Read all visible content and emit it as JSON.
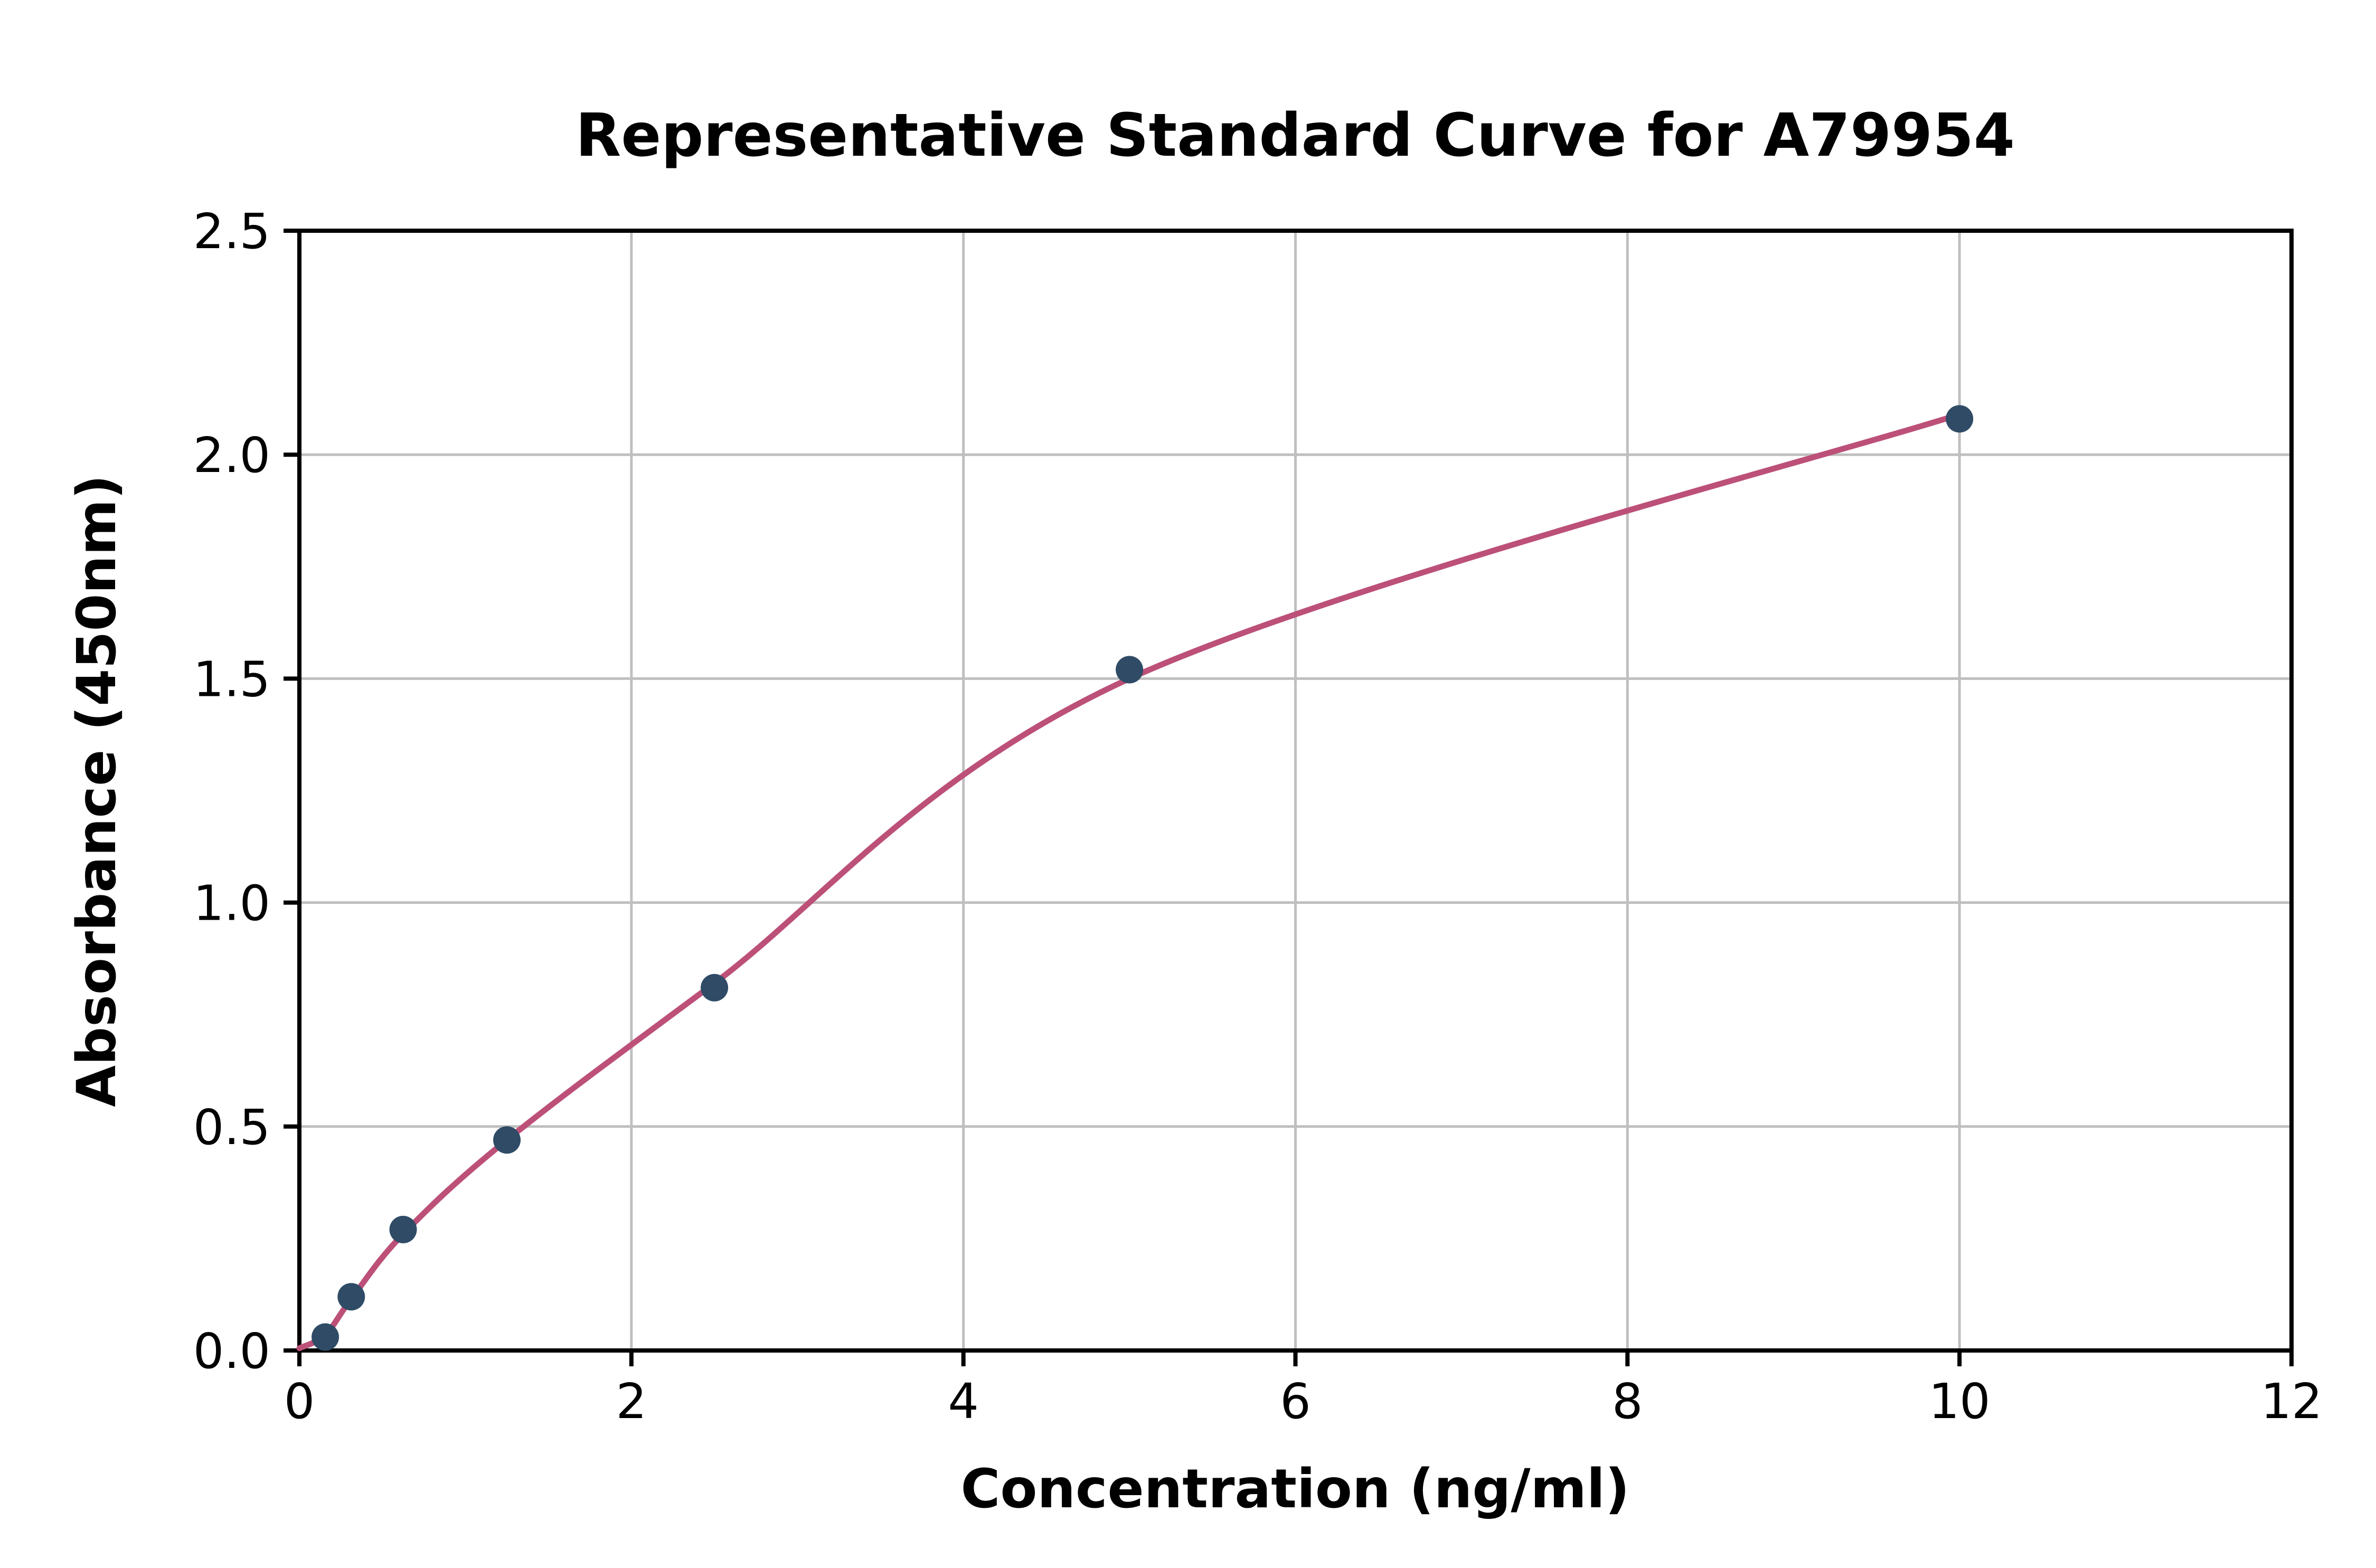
{
  "figure": {
    "background_color": "#ffffff"
  },
  "chart_data": {
    "type": "scatter",
    "title": "Representative Standard Curve for A79954",
    "xlabel": "Concentration (ng/ml)",
    "ylabel": "Absorbance (450nm)",
    "xlim": [
      0,
      12
    ],
    "ylim": [
      0,
      2.5
    ],
    "x_tick_values": [
      0,
      2,
      4,
      6,
      8,
      10,
      12
    ],
    "x_tick_labels": [
      "0",
      "2",
      "4",
      "6",
      "8",
      "10",
      "12"
    ],
    "y_tick_values": [
      0.0,
      0.5,
      1.0,
      1.5,
      2.0,
      2.5
    ],
    "y_tick_labels": [
      "0.0",
      "0.5",
      "1.0",
      "1.5",
      "2.0",
      "2.5"
    ],
    "grid": true,
    "legend": "none",
    "colors": {
      "point": "#2f4b66",
      "curve": "#bc5078",
      "grid": "#bfbfbf",
      "axis": "#000000",
      "text": "#000000"
    },
    "series": [
      {
        "name": "standard-points",
        "type": "scatter",
        "x": [
          0.156,
          0.3125,
          0.625,
          1.25,
          2.5,
          5,
          10
        ],
        "y": [
          0.03,
          0.12,
          0.27,
          0.47,
          0.81,
          1.52,
          2.08
        ]
      },
      {
        "name": "fitted-curve",
        "type": "smooth-line",
        "x": [
          0,
          0.156,
          0.3125,
          0.625,
          1.25,
          2.5,
          5,
          10
        ],
        "y": [
          0.005,
          0.035,
          0.115,
          0.26,
          0.47,
          0.82,
          1.5,
          2.09
        ]
      }
    ]
  }
}
